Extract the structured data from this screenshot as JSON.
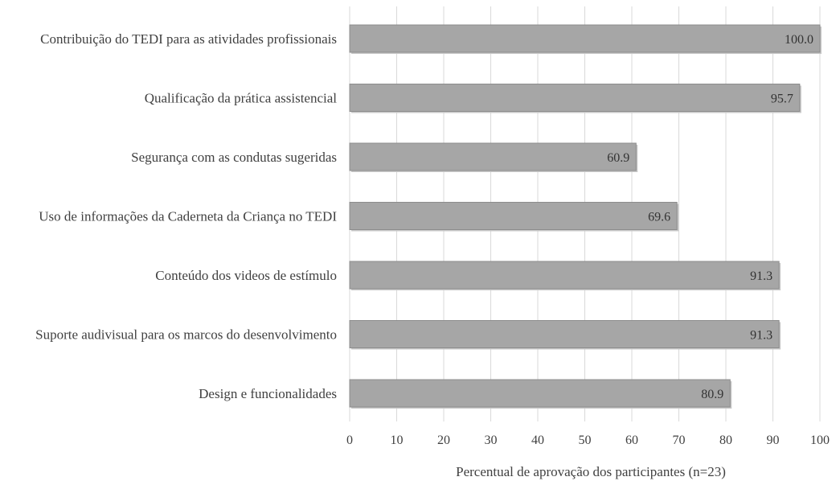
{
  "chart_data": {
    "type": "bar",
    "orientation": "horizontal",
    "categories": [
      "Contribuição do TEDI para as atividades profissionais",
      "Qualificação da prática assistencial",
      "Segurança com as condutas sugeridas",
      "Uso de informações da Caderneta da Criança no TEDI",
      "Conteúdo dos videos de estímulo",
      "Suporte audivisual para os marcos do desenvolvimento",
      "Design e funcionalidades"
    ],
    "values": [
      100.0,
      95.7,
      60.9,
      69.6,
      91.3,
      91.3,
      80.9
    ],
    "value_labels": [
      "100.0",
      "95.7",
      "60.9",
      "69.6",
      "91.3",
      "91.3",
      "80.9"
    ],
    "xlabel": "Percentual de aprovação dos participantes (n=23)",
    "ylabel": "",
    "xlim": [
      0,
      100
    ],
    "xticks": [
      "0",
      "10",
      "20",
      "30",
      "40",
      "50",
      "60",
      "70",
      "80",
      "90",
      "100"
    ],
    "grid": "vertical",
    "bar_color": "#a6a6a6",
    "bar_edge_color": "#8c8c8c",
    "grid_color": "#d9d9d9"
  }
}
